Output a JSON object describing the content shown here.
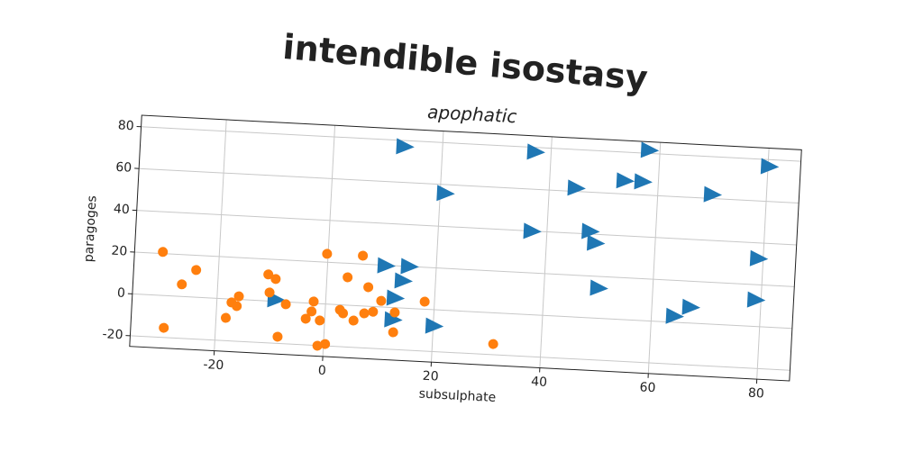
{
  "chart_data": {
    "type": "scatter",
    "title": "intendible isostasy",
    "subtitle": "apophatic",
    "x_label": "subsulphate",
    "y_label": "paragoges",
    "xlim": [
      -35.6,
      86
    ],
    "ylim": [
      -25.1,
      85.5
    ],
    "xticks": [
      -20,
      0,
      20,
      40,
      60,
      80
    ],
    "yticks": [
      -20,
      0,
      20,
      40,
      60,
      80
    ],
    "grid": true,
    "series": [
      {
        "color": "#1f77b4",
        "marker": "triangle",
        "x": [
          13.0,
          37.1,
          58.0,
          80.2,
          20.9,
          44.9,
          53.8,
          57.1,
          70.0,
          37.2,
          47.9,
          49.0,
          79.1,
          10.7,
          15.0,
          14.0,
          12.7,
          -9.2,
          50.0,
          79.0,
          67.1,
          64.2,
          12.5,
          20.1
        ],
        "values": [
          77.1,
          77.8,
          81.5,
          76.7,
          55.8,
          61.6,
          66.3,
          66.3,
          61.9,
          39.9,
          41.3,
          35.8,
          32.5,
          19.8,
          20.0,
          13.0,
          4.6,
          0.8,
          14.4,
          12.7,
          7.6,
          2.9,
          -5.8,
          -7.8
        ]
      },
      {
        "color": "#ff7f0e",
        "marker": "circle",
        "x": [
          -30.4,
          -24.1,
          -26.6,
          -29.5,
          -16.0,
          -17.3,
          -16.3,
          -18.2,
          -10.8,
          -9.4,
          -10.4,
          -7.3,
          -8.5,
          -3.5,
          -2.2,
          -2.5,
          -0.9,
          -0.2,
          -1.1,
          0.3,
          2.7,
          3.3,
          3.8,
          5.3,
          6.4,
          7.2,
          7.7,
          8.8,
          10.2,
          12.8,
          12.7,
          18.2,
          31.2
        ],
        "values": [
          20.8,
          13.0,
          5.8,
          -15.4,
          1.5,
          -1.6,
          -3.2,
          -9.1,
          12.7,
          10.7,
          4.1,
          -1.1,
          -16.8,
          -7.5,
          0.9,
          -3.9,
          -8.0,
          24.0,
          -20.1,
          -19.1,
          -2.4,
          -4.0,
          13.3,
          -7.2,
          24.0,
          -3.5,
          9.1,
          -2.5,
          2.9,
          -2.3,
          -11.8,
          3.6,
          -14.9
        ]
      }
    ]
  }
}
